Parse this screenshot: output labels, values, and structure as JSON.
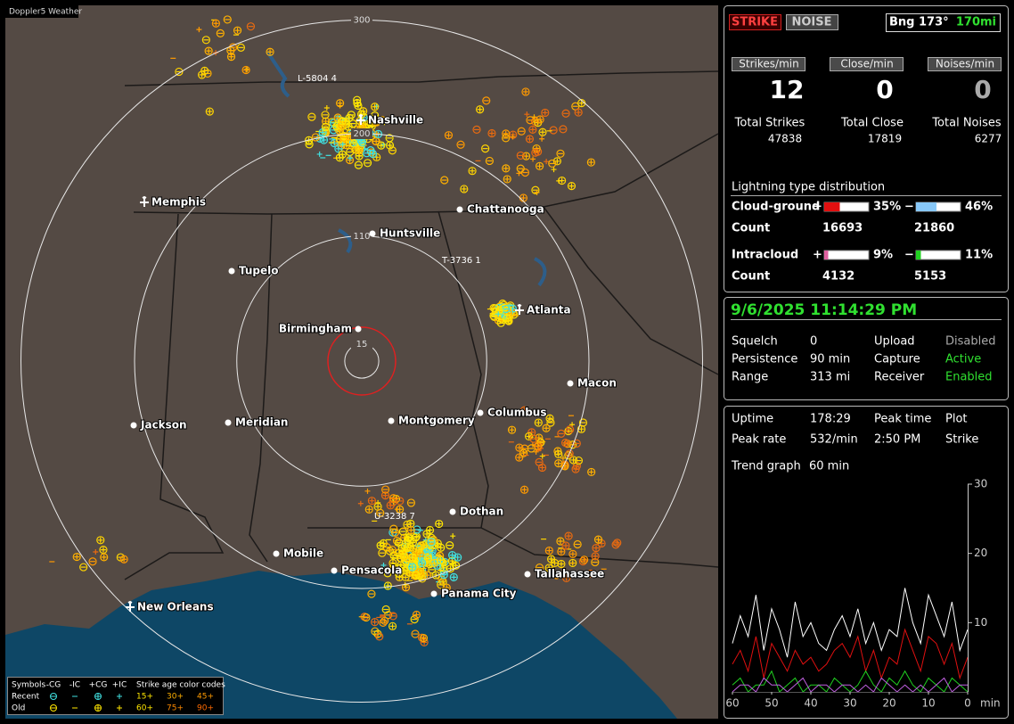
{
  "map": {
    "title": "Doppler5 Weather",
    "range_rings": [
      300,
      200,
      110,
      15
    ],
    "cities": [
      "Nashville",
      "Memphis",
      "Chattanooga",
      "Huntsville",
      "Tupelo",
      "Atlanta",
      "Birmingham",
      "Macon",
      "Jackson",
      "Meridian",
      "Montgomery",
      "Columbus",
      "Dothan",
      "Mobile",
      "Pensacola",
      "Panama City",
      "Tallahassee",
      "New Orleans"
    ],
    "storms": [
      "L-5804 4",
      "T-3736 1",
      "U-3238 7"
    ],
    "legend": {
      "symbols_label": "Symbols",
      "types": [
        "-CG",
        "-IC",
        "+CG",
        "+IC"
      ],
      "age_label": "Strike age color codes",
      "rows": [
        {
          "label": "Recent",
          "ages": [
            "15+",
            "30+",
            "45+"
          ]
        },
        {
          "label": "Old",
          "ages": [
            "60+",
            "75+",
            "90+"
          ]
        }
      ]
    }
  },
  "panel": {
    "mode_buttons": [
      "STRIKE",
      "NOISE"
    ],
    "bearing": "Bng 173°",
    "distance": "170mi",
    "rates": [
      {
        "label": "Strikes/min",
        "value": 12
      },
      {
        "label": "Close/min",
        "value": 0
      },
      {
        "label": "Noises/min",
        "value": 0
      }
    ],
    "totals": [
      {
        "label": "Total Strikes",
        "value": 47838
      },
      {
        "label": "Total Close",
        "value": 17819
      },
      {
        "label": "Total Noises",
        "value": 6277
      }
    ],
    "distribution": {
      "title": "Lightning type distribution",
      "count_label": "Count",
      "rows": [
        {
          "label": "Cloud-ground",
          "pos_sign": "+",
          "pos": {
            "value": 35,
            "label": "35%"
          },
          "neg_sign": "−",
          "neg": {
            "value": 46,
            "label": "46%"
          },
          "pos_count": 16693,
          "neg_count": 21860
        },
        {
          "label": "Intracloud",
          "pos_sign": "+",
          "pos": {
            "value": 9,
            "label": "9%"
          },
          "neg_sign": "−",
          "neg": {
            "value": 11,
            "label": "11%"
          },
          "pos_count": 4132,
          "neg_count": 5153
        }
      ]
    },
    "status": {
      "datetime": "9/6/2025 11:14:29 PM",
      "rows": [
        [
          "Squelch",
          0,
          "Upload",
          "Disabled"
        ],
        [
          "Persistence",
          "90 min",
          "Capture",
          "Active"
        ],
        [
          "Range",
          "313 mi",
          "Receiver",
          "Enabled"
        ]
      ]
    },
    "stats": {
      "rows": [
        [
          "Uptime",
          "178:29",
          "Peak time",
          "Plot"
        ],
        [
          "Peak rate",
          "532/min",
          "2:50 PM",
          "Strike"
        ]
      ]
    },
    "trend_label": "Trend graph",
    "trend_window": "60 min"
  },
  "trend_graph": {
    "type": "line",
    "x": [
      60,
      58,
      56,
      54,
      52,
      50,
      48,
      46,
      44,
      42,
      40,
      38,
      36,
      34,
      32,
      30,
      28,
      26,
      24,
      22,
      20,
      18,
      16,
      14,
      12,
      10,
      8,
      6,
      4,
      2,
      0
    ],
    "xlim": [
      60,
      0
    ],
    "xticks": [
      60,
      50,
      40,
      30,
      20,
      10,
      0
    ],
    "x_unit": "min",
    "ylim": [
      0,
      30
    ],
    "yticks": [
      10,
      20,
      30
    ],
    "series": [
      {
        "color": "#ffffff",
        "values": [
          7,
          11,
          8,
          14,
          6,
          12,
          9,
          5,
          13,
          8,
          10,
          7,
          6,
          9,
          11,
          8,
          12,
          7,
          10,
          6,
          9,
          8,
          15,
          10,
          7,
          14,
          11,
          8,
          13,
          6,
          9
        ]
      },
      {
        "color": "#e01010",
        "values": [
          4,
          6,
          3,
          8,
          2,
          7,
          5,
          3,
          6,
          4,
          5,
          3,
          4,
          6,
          7,
          5,
          8,
          3,
          6,
          2,
          5,
          4,
          9,
          6,
          3,
          8,
          7,
          4,
          7,
          2,
          5
        ]
      },
      {
        "color": "#20d020",
        "values": [
          1,
          2,
          0,
          1,
          1,
          3,
          0,
          1,
          2,
          0,
          1,
          1,
          0,
          2,
          1,
          0,
          1,
          3,
          1,
          0,
          2,
          1,
          3,
          1,
          0,
          2,
          1,
          0,
          2,
          1,
          0
        ]
      },
      {
        "color": "#c060e0",
        "values": [
          0,
          1,
          1,
          0,
          2,
          1,
          1,
          0,
          1,
          2,
          0,
          1,
          1,
          0,
          1,
          1,
          0,
          1,
          0,
          2,
          1,
          0,
          1,
          0,
          1,
          0,
          1,
          2,
          0,
          1,
          1
        ]
      }
    ]
  }
}
